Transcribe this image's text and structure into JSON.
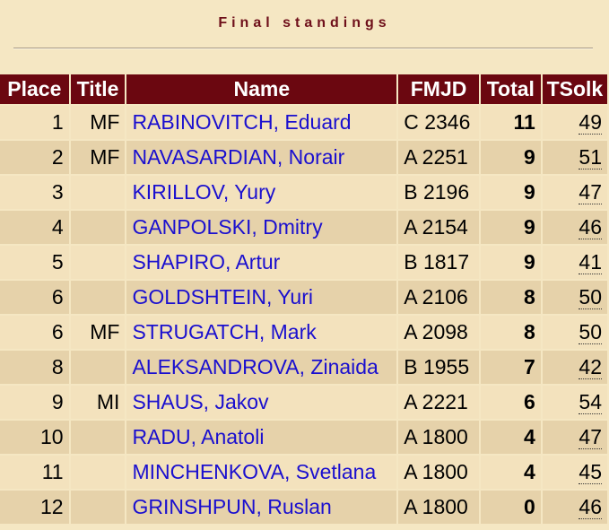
{
  "caption": "Final standings",
  "headers": {
    "place": "Place",
    "title": "Title",
    "name": "Name",
    "fmjd": "FMJD",
    "total": "Total",
    "tsolk": "TSolk"
  },
  "rows": [
    {
      "place": "1",
      "title": "MF",
      "name": "RABINOVITCH, Eduard",
      "fmjd": "C 2346",
      "total": "11",
      "tsolk": "49"
    },
    {
      "place": "2",
      "title": "MF",
      "name": "NAVASARDIAN, Norair",
      "fmjd": "A 2251",
      "total": "9",
      "tsolk": "51"
    },
    {
      "place": "3",
      "title": "",
      "name": "KIRILLOV, Yury",
      "fmjd": "B 2196",
      "total": "9",
      "tsolk": "47"
    },
    {
      "place": "4",
      "title": "",
      "name": "GANPOLSKI, Dmitry",
      "fmjd": "A 2154",
      "total": "9",
      "tsolk": "46"
    },
    {
      "place": "5",
      "title": "",
      "name": "SHAPIRO, Artur",
      "fmjd": "B 1817",
      "total": "9",
      "tsolk": "41"
    },
    {
      "place": "6",
      "title": "",
      "name": "GOLDSHTEIN, Yuri",
      "fmjd": "A 2106",
      "total": "8",
      "tsolk": "50"
    },
    {
      "place": "6",
      "title": "MF",
      "name": "STRUGATCH, Mark",
      "fmjd": "A 2098",
      "total": "8",
      "tsolk": "50"
    },
    {
      "place": "8",
      "title": "",
      "name": "ALEKSANDROVA, Zinaida",
      "fmjd": "B 1955",
      "total": "7",
      "tsolk": "42"
    },
    {
      "place": "9",
      "title": "MI",
      "name": "SHAUS, Jakov",
      "fmjd": "A 2221",
      "total": "6",
      "tsolk": "54"
    },
    {
      "place": "10",
      "title": "",
      "name": "RADU, Anatoli",
      "fmjd": "A 1800",
      "total": "4",
      "tsolk": "47"
    },
    {
      "place": "11",
      "title": "",
      "name": "MINCHENKOVA, Svetlana",
      "fmjd": "A 1800",
      "total": "4",
      "tsolk": "45"
    },
    {
      "place": "12",
      "title": "",
      "name": "GRINSHPUN, Ruslan",
      "fmjd": "A 1800",
      "total": "0",
      "tsolk": "46"
    }
  ]
}
